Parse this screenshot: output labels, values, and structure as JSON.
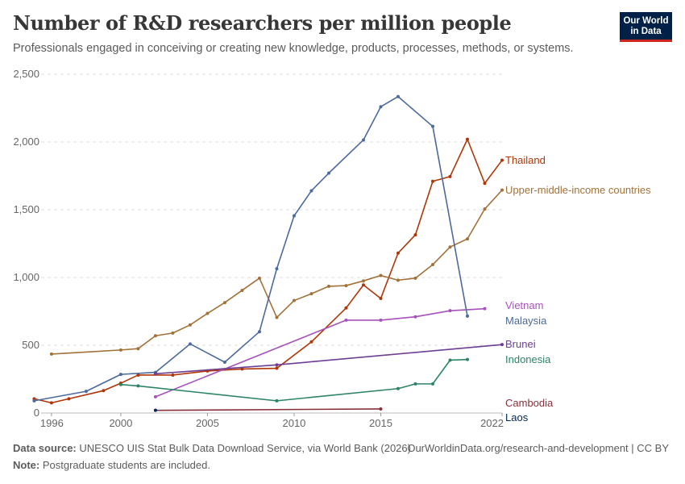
{
  "header": {
    "title": "Number of R&D researchers per million people",
    "subtitle": "Professionals engaged in conceiving or creating new knowledge, products, processes, methods, or systems."
  },
  "logo": {
    "line1": "Our World",
    "line2": "in Data"
  },
  "footer": {
    "source_label": "Data source:",
    "source_text": "UNESCO UIS Stat Bulk Data Download Service, via World Bank (2026)",
    "url": "OurWorldinData.org/research-and-development | CC BY",
    "note_label": "Note:",
    "note_text": "Postgraduate students are included."
  },
  "chart_data": {
    "type": "line",
    "title": "Number of R&D researchers per million people",
    "xlabel": "",
    "ylabel": "",
    "xlim": [
      1996,
      2022
    ],
    "ylim": [
      0,
      2500
    ],
    "x_ticks": [
      "1996",
      "2000",
      "2005",
      "2010",
      "2015",
      "2022"
    ],
    "y_ticks": [
      "0",
      "500",
      "1,000",
      "1,500",
      "2,000",
      "2,500"
    ],
    "x_tick_values": [
      1996,
      2000,
      2005,
      2010,
      2015,
      2022
    ],
    "y_tick_values": [
      0,
      500,
      1000,
      1500,
      2000,
      2500
    ],
    "grid": "horizontal dashed",
    "series": [
      {
        "name": "Thailand",
        "color": "#b13507",
        "x": [
          1995,
          1996,
          1997,
          1999,
          2000,
          2001,
          2003,
          2005,
          2007,
          2009,
          2011,
          2013,
          2014,
          2015,
          2016,
          2017,
          2018,
          2019,
          2020,
          2021,
          2022
        ],
        "y": [
          105,
          75,
          105,
          165,
          220,
          280,
          280,
          310,
          325,
          330,
          525,
          775,
          945,
          845,
          1180,
          1315,
          1710,
          1745,
          2020,
          1695,
          1865
        ]
      },
      {
        "name": "Upper-middle-income countries",
        "color": "#a2723a",
        "x": [
          1996,
          2000,
          2001,
          2002,
          2003,
          2004,
          2005,
          2006,
          2007,
          2008,
          2009,
          2010,
          2011,
          2012,
          2013,
          2014,
          2015,
          2016,
          2017,
          2018,
          2019,
          2020,
          2021,
          2022
        ],
        "y": [
          435,
          465,
          475,
          570,
          590,
          650,
          735,
          815,
          905,
          995,
          705,
          830,
          880,
          935,
          940,
          975,
          1015,
          980,
          995,
          1095,
          1225,
          1285,
          1505,
          1645
        ]
      },
      {
        "name": "Vietnam",
        "color": "#a652ba",
        "x": [
          2002,
          2013,
          2015,
          2017,
          2019,
          2021
        ],
        "y": [
          120,
          685,
          685,
          710,
          755,
          770
        ]
      },
      {
        "name": "Malaysia",
        "color": "#4c6a9c",
        "x": [
          1995,
          1998,
          2000,
          2002,
          2004,
          2006,
          2008,
          2009,
          2010,
          2011,
          2012,
          2014,
          2015,
          2016,
          2018,
          2020
        ],
        "y": [
          90,
          160,
          285,
          300,
          510,
          375,
          600,
          1065,
          1455,
          1640,
          1770,
          2015,
          2260,
          2335,
          2115,
          715
        ]
      },
      {
        "name": "Brunei",
        "color": "#6d3e91",
        "x": [
          2002,
          2009,
          2022
        ],
        "y": [
          290,
          355,
          505
        ]
      },
      {
        "name": "Indonesia",
        "color": "#2c8465",
        "x": [
          2000,
          2001,
          2009,
          2016,
          2017,
          2018,
          2019,
          2020
        ],
        "y": [
          210,
          200,
          90,
          180,
          215,
          215,
          390,
          395
        ]
      },
      {
        "name": "Cambodia",
        "color": "#883039",
        "x": [
          2002,
          2015
        ],
        "y": [
          20,
          30
        ]
      },
      {
        "name": "Laos",
        "color": "#00295b",
        "x": [
          2002
        ],
        "y": [
          20
        ]
      }
    ]
  }
}
